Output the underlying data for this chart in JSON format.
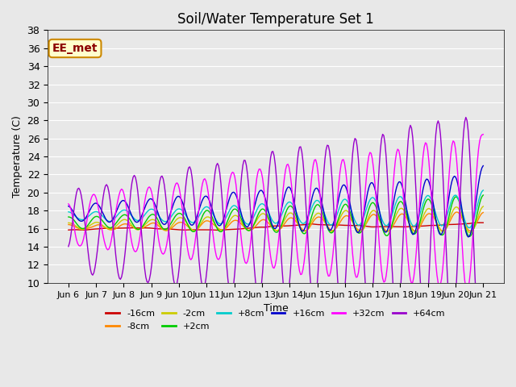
{
  "title": "Soil/Water Temperature Set 1",
  "xlabel": "Time",
  "ylabel": "Temperature (C)",
  "ylim": [
    10,
    38
  ],
  "yticks": [
    10,
    12,
    14,
    16,
    18,
    20,
    22,
    24,
    26,
    28,
    30,
    32,
    34,
    36,
    38
  ],
  "xtick_labels": [
    "Jun 6",
    "Jun 7",
    "Jun 8",
    "Jun 9",
    "Jun 10",
    "Jun 11",
    "Jun 12",
    "Jun 13",
    "Jun 14",
    "Jun 15",
    "Jun 16",
    "Jun 17",
    "Jun 18",
    "Jun 19",
    "Jun 20",
    "Jun 21"
  ],
  "series_labels": [
    "-16cm",
    "-8cm",
    "-2cm",
    "+2cm",
    "+8cm",
    "+16cm",
    "+32cm",
    "+64cm"
  ],
  "series_colors": [
    "#cc0000",
    "#ff8800",
    "#cccc00",
    "#00cc00",
    "#00cccc",
    "#0000cc",
    "#ff00ff",
    "#9900cc"
  ],
  "background_color": "#e8e8e8",
  "plot_bg_color": "#e8e8e8",
  "watermark_text": "EE_met",
  "watermark_bg": "#ffffcc",
  "watermark_border": "#cc8800"
}
